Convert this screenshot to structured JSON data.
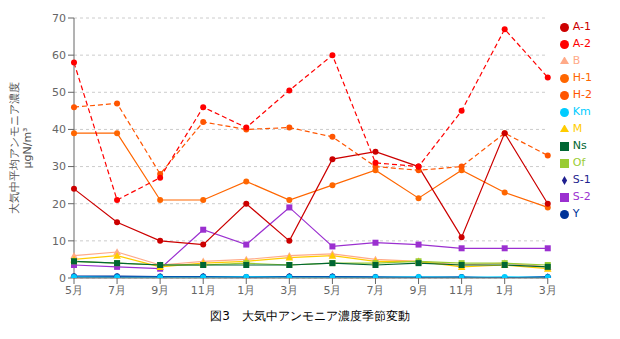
{
  "chart_data": {
    "type": "line",
    "title": "図3　大気中アンモニア濃度季節変動",
    "ylabel": "大気中平均アンモニア濃度\nμgN/m³",
    "categories": [
      "5月",
      "7月",
      "9月",
      "11月",
      "1月",
      "3月",
      "5月",
      "7月",
      "9月",
      "11月",
      "1月",
      "3月"
    ],
    "series": [
      {
        "name": "S-1",
        "color": "#1f1f8f",
        "marker": "diamond",
        "line_style": "solid",
        "values": [
          0.3,
          0.3,
          0.3,
          0.4,
          0.2,
          0.4,
          0.3,
          0.2,
          0.2,
          0.1,
          0.0,
          0.3
        ]
      },
      {
        "name": "S-2",
        "color": "#9b30d0",
        "marker": "square",
        "line_style": "solid",
        "values": [
          3.5,
          3.0,
          2.5,
          13.0,
          9.0,
          19.0,
          8.5,
          9.5,
          9.0,
          8.0,
          8.0,
          8.0
        ]
      },
      {
        "name": "H-1",
        "color": "#ff6600",
        "marker": "circle",
        "line_style": "solid",
        "values": [
          39.0,
          39.0,
          21.0,
          21.0,
          26.0,
          21.0,
          25.0,
          29.0,
          21.5,
          29.0,
          23.0,
          19.0
        ]
      },
      {
        "name": "H-2",
        "color": "#ff5500",
        "marker": "circle",
        "line_style": "dashed",
        "values": [
          46.0,
          47.0,
          28.0,
          42.0,
          40.0,
          40.5,
          38.0,
          30.0,
          29.0,
          30.0,
          39.0,
          33.0
        ]
      },
      {
        "name": "A-1",
        "color": "#cc0000",
        "marker": "circle",
        "line_style": "solid",
        "values": [
          24.0,
          15.0,
          10.0,
          9.0,
          20.0,
          10.0,
          32.0,
          34.0,
          30.0,
          11.0,
          39.0,
          20.0
        ]
      },
      {
        "name": "A-2",
        "color": "#ff0000",
        "marker": "circle",
        "line_style": "dashed",
        "values": [
          58.0,
          21.0,
          27.0,
          46.0,
          40.5,
          50.5,
          60.0,
          31.0,
          30.0,
          45.0,
          67.0,
          54.0
        ]
      },
      {
        "name": "Y",
        "color": "#003399",
        "marker": "circle",
        "line_style": "solid",
        "values": [
          0.5,
          0.5,
          0.4,
          0.4,
          0.3,
          0.4,
          0.4,
          0.3,
          0.2,
          0.3,
          0.0,
          0.3
        ]
      },
      {
        "name": "Km",
        "color": "#00ccff",
        "marker": "circle",
        "line_style": "solid",
        "values": [
          0.3,
          0.2,
          0.2,
          0.2,
          0.3,
          0.2,
          0.2,
          0.2,
          0.3,
          0.2,
          0.3,
          0.2
        ]
      },
      {
        "name": "B",
        "color": "#ffaa88",
        "marker": "triangle",
        "line_style": "solid",
        "values": [
          6.0,
          7.0,
          3.5,
          4.5,
          5.0,
          6.0,
          6.5,
          5.0,
          4.5,
          3.5,
          4.0,
          3.0
        ]
      },
      {
        "name": "M",
        "color": "#ffcc00",
        "marker": "triangle",
        "line_style": "solid",
        "values": [
          5.0,
          6.0,
          3.0,
          4.0,
          4.5,
          5.5,
          6.0,
          4.5,
          4.5,
          3.0,
          3.5,
          2.5
        ]
      },
      {
        "name": "Of",
        "color": "#99cc33",
        "marker": "square",
        "line_style": "solid",
        "values": [
          4.5,
          4.0,
          3.5,
          3.5,
          4.0,
          3.5,
          4.0,
          4.0,
          4.5,
          4.0,
          4.0,
          3.5
        ]
      },
      {
        "name": "Ns",
        "color": "#006633",
        "marker": "square",
        "line_style": "solid",
        "values": [
          4.5,
          4.0,
          3.5,
          3.5,
          3.5,
          3.5,
          4.0,
          3.5,
          4.0,
          3.5,
          3.5,
          3.0
        ]
      }
    ],
    "ylim": [
      0,
      70
    ],
    "yticks": [
      0,
      10,
      20,
      30,
      40,
      50,
      60,
      70
    ],
    "grid": "y",
    "legend": "right"
  }
}
